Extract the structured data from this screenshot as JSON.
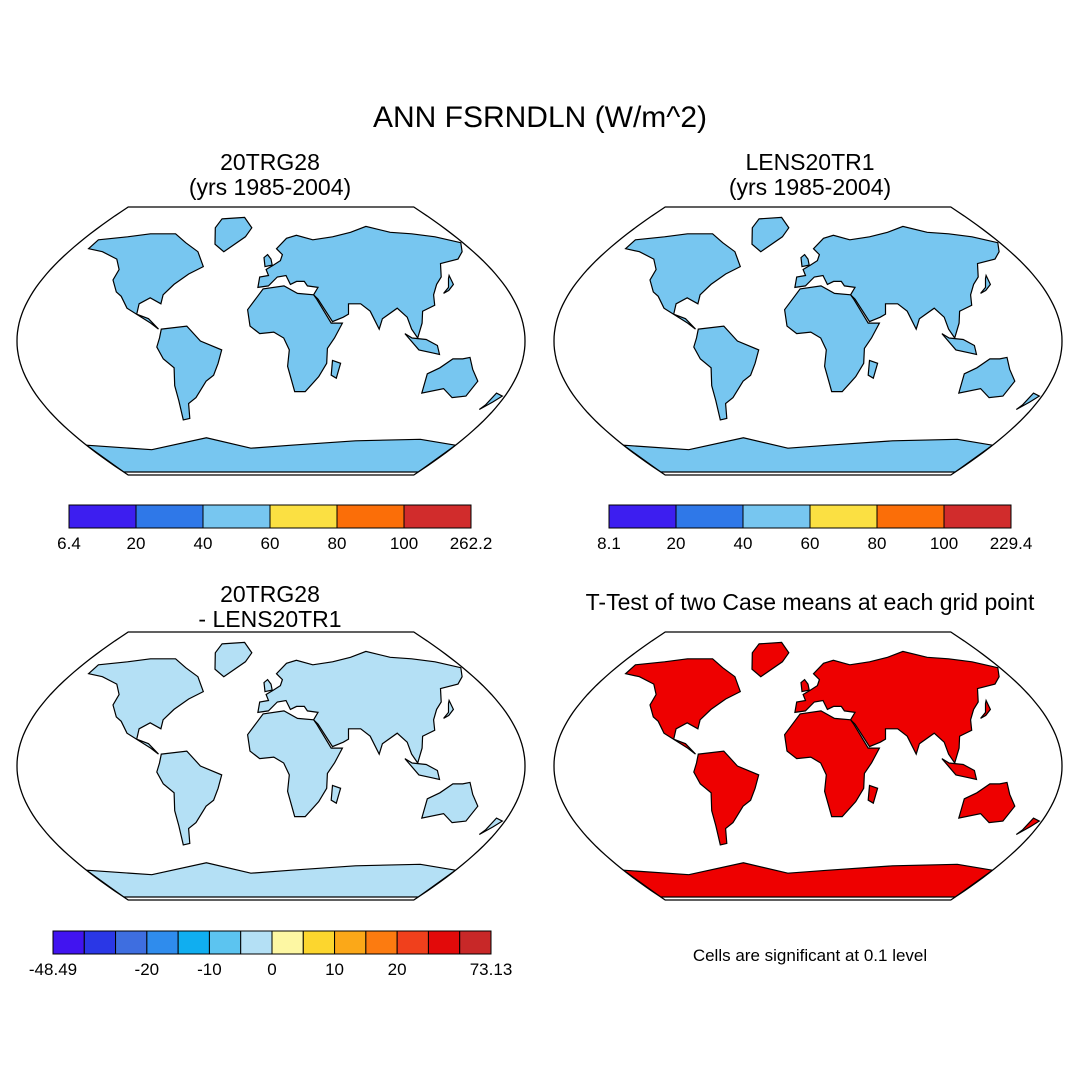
{
  "title": "ANN FSRNDLN (W/m^2)",
  "panels": [
    {
      "title_line1": "20TRG28",
      "title_line2": "(yrs 1985-2004)",
      "colorbar": {
        "colors": [
          "#3d1ef0",
          "#2f78e8",
          "#77c6f0",
          "#fbe042",
          "#fb6e08",
          "#d12c2c"
        ],
        "labels": [
          "6.4",
          "20",
          "40",
          "60",
          "80",
          "100",
          "262.2"
        ]
      },
      "land_color": "#77c6f0"
    },
    {
      "title_line1": "LENS20TR1",
      "title_line2": "(yrs 1985-2004)",
      "colorbar": {
        "colors": [
          "#3d1ef0",
          "#2f78e8",
          "#77c6f0",
          "#fbe042",
          "#fb6e08",
          "#d12c2c"
        ],
        "labels": [
          "8.1",
          "20",
          "40",
          "60",
          "80",
          "100",
          "229.4"
        ]
      },
      "land_color": "#77c6f0"
    },
    {
      "title_line1": "20TRG28",
      "title_line2": "- LENS20TR1",
      "colorbar": {
        "colors": [
          "#4114f0",
          "#2a37e6",
          "#3e6ee0",
          "#2f8ced",
          "#10aef0",
          "#5cc4f0",
          "#b4e0f5",
          "#fdf7a3",
          "#fcd62e",
          "#fba818",
          "#fc7b10",
          "#f0401c",
          "#e20a0a",
          "#c82828"
        ],
        "labels": [
          "-48.49",
          "-20",
          "-10",
          "0",
          "10",
          "20",
          "73.13"
        ]
      },
      "land_color": "#b4e0f5"
    },
    {
      "title": "T-Test of two Case means at each grid point",
      "note": "Cells are significant at 0.1 level",
      "land_color": "#ee0000"
    }
  ]
}
